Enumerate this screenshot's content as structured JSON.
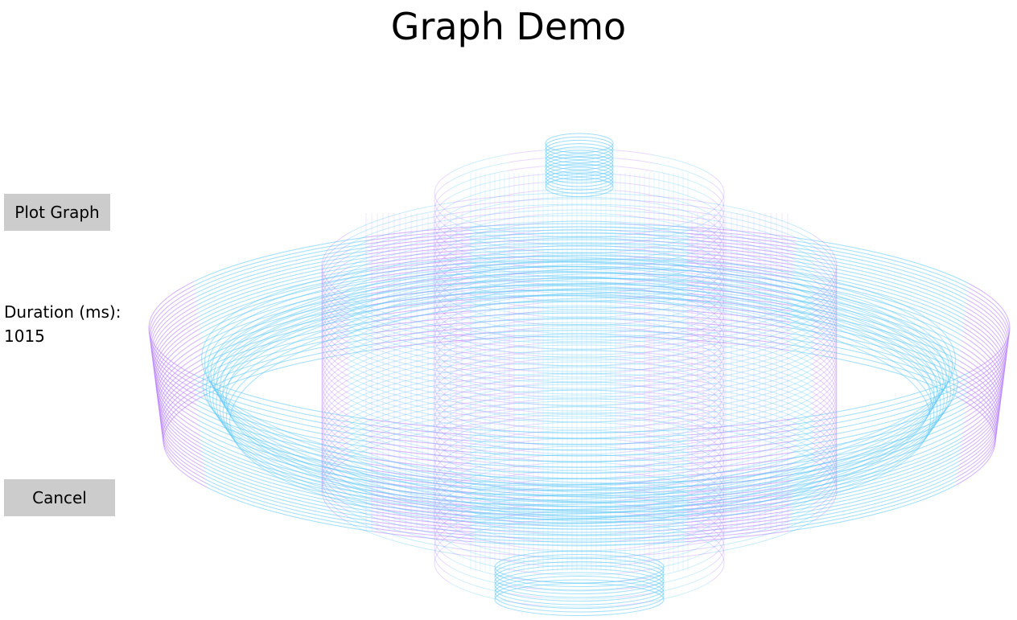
{
  "window": {
    "title": "Graph Demo"
  },
  "controls": {
    "plot_label": "Plot Graph",
    "cancel_label": "Cancel",
    "duration_label": "Duration (ms):",
    "duration_value": "1015"
  },
  "colors": {
    "background": "#ffffff",
    "button": "#cccccc",
    "plot_blue": "#5ec8f8",
    "plot_purple": "#b57cff"
  }
}
